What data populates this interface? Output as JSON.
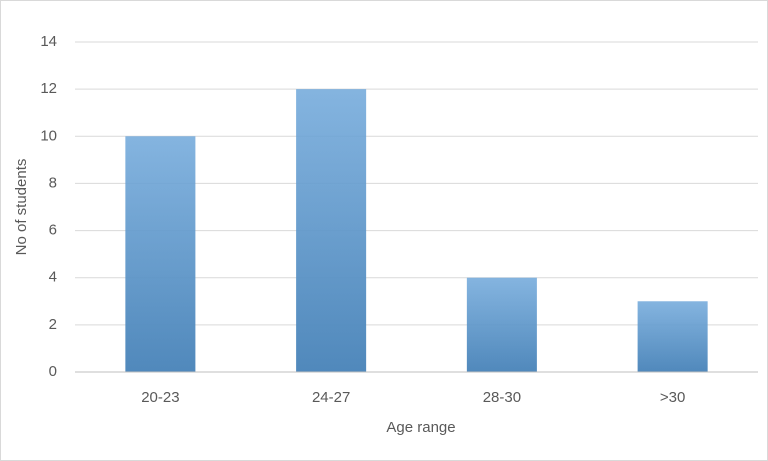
{
  "chart_data": {
    "type": "bar",
    "x_label": "Age range",
    "y_label": "No of students",
    "categories": [
      "20-23",
      "24-27",
      "28-30",
      ">30"
    ],
    "values": [
      10,
      12,
      4,
      3
    ],
    "color": "#5b9bd5",
    "ylim": [
      0,
      14
    ],
    "yticks": [
      0,
      2,
      4,
      6,
      8,
      10,
      12,
      14
    ],
    "grid": true
  }
}
